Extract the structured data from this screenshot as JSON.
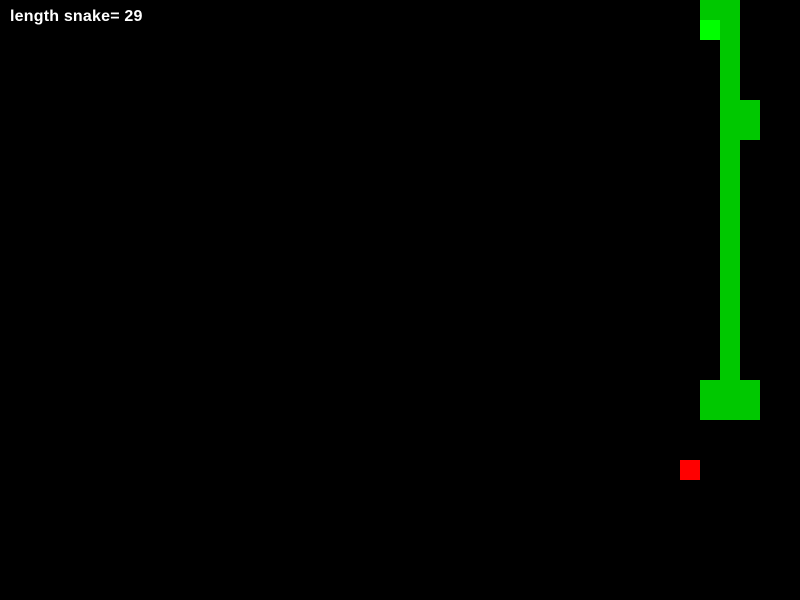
{
  "hud": {
    "length_text": "length snake= 29"
  },
  "colors": {
    "background": "#000000",
    "snake_body": "#00c800",
    "snake_head": "#00ff00",
    "food": "#ff0000",
    "hud_text": "#ffffff"
  },
  "grid": {
    "columns": 40,
    "rows": 30
  },
  "snake": {
    "head": [
      35,
      1
    ],
    "body": [
      [
        35,
        0
      ],
      [
        36,
        0
      ],
      [
        36,
        1
      ],
      [
        36,
        2
      ],
      [
        36,
        3
      ],
      [
        36,
        4
      ],
      [
        36,
        5
      ],
      [
        37,
        5
      ],
      [
        36,
        6
      ],
      [
        37,
        6
      ],
      [
        36,
        7
      ],
      [
        36,
        8
      ],
      [
        36,
        9
      ],
      [
        36,
        10
      ],
      [
        36,
        11
      ],
      [
        36,
        12
      ],
      [
        36,
        13
      ],
      [
        36,
        14
      ],
      [
        36,
        15
      ],
      [
        36,
        16
      ],
      [
        36,
        17
      ],
      [
        36,
        18
      ],
      [
        35,
        19
      ],
      [
        36,
        19
      ],
      [
        37,
        19
      ],
      [
        35,
        20
      ],
      [
        36,
        20
      ],
      [
        37,
        20
      ]
    ]
  },
  "food": [
    34,
    23
  ]
}
